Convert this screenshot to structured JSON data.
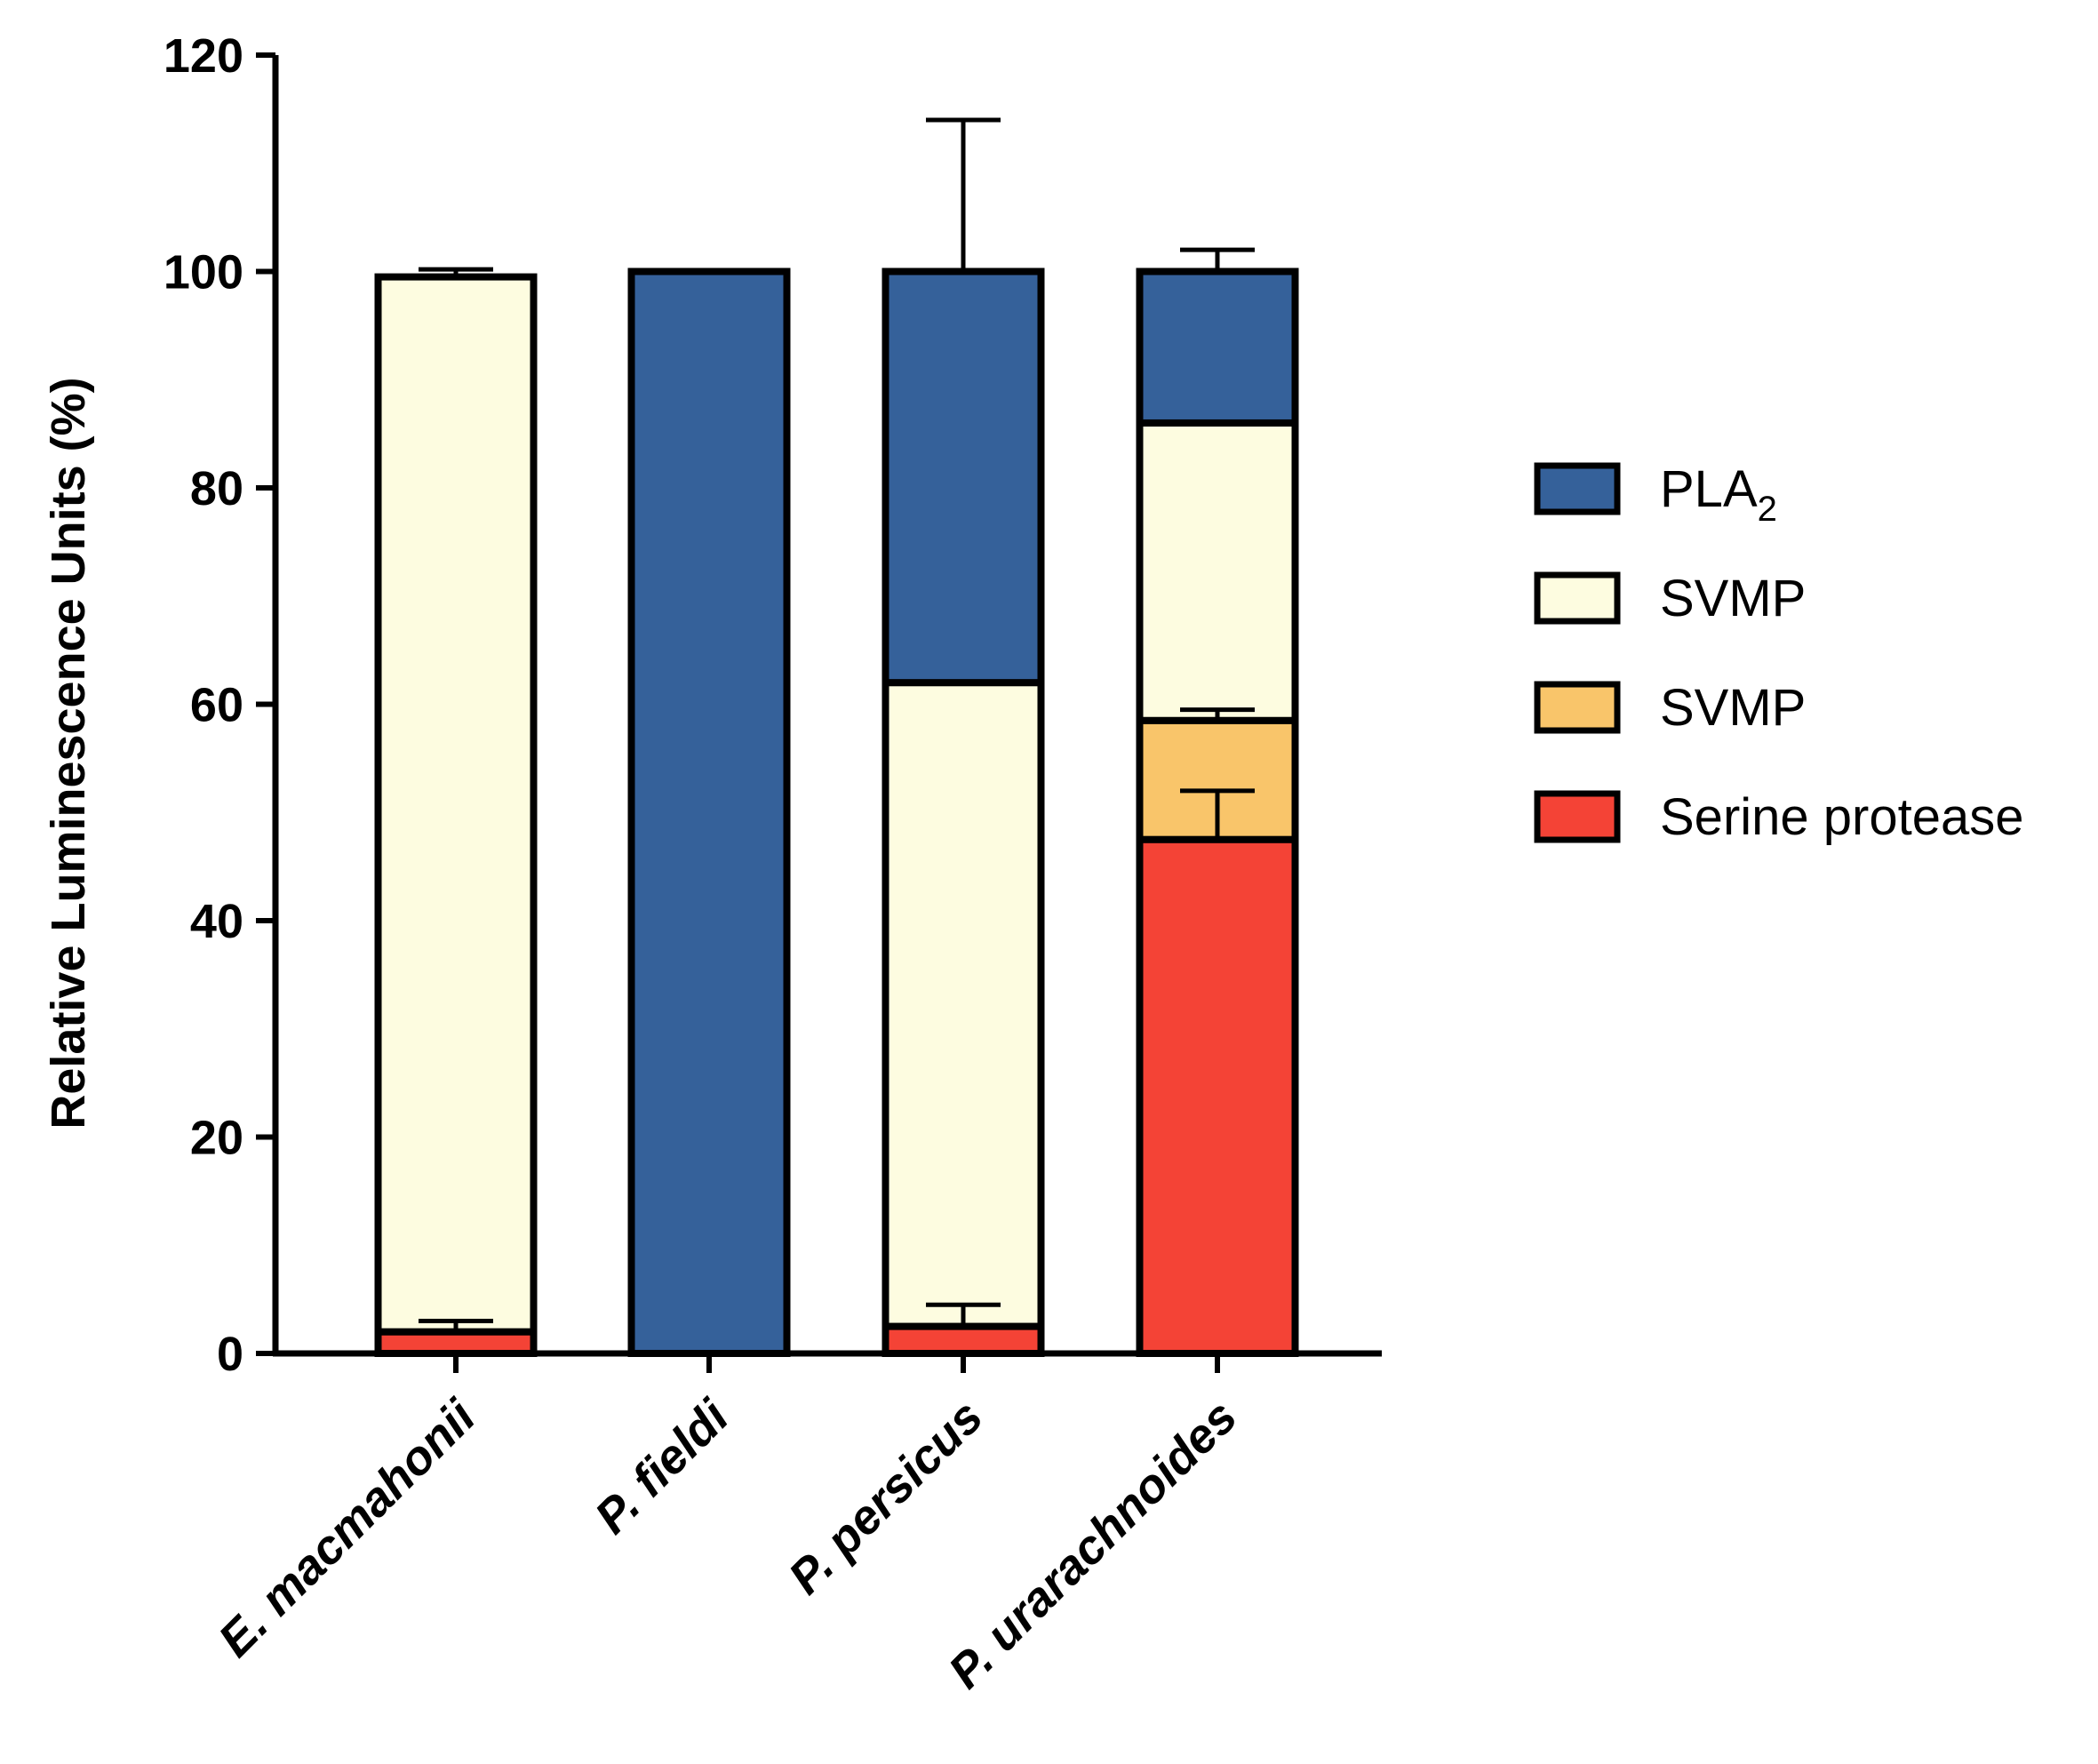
{
  "chart_data": {
    "type": "stacked-bar",
    "title": "",
    "xlabel": "",
    "ylabel": "Relative Luminescence Units (%)",
    "ylim": [
      0,
      120
    ],
    "yticks": [
      0,
      20,
      40,
      60,
      80,
      100,
      120
    ],
    "grid": false,
    "legend_position": "right",
    "categories": [
      "E. macmahonii",
      "P. fieldi",
      "P. persicus",
      "P. urarachnoides"
    ],
    "series": [
      {
        "name": "Serine protease",
        "color": "#f44336",
        "values": [
          2,
          0,
          2.5,
          47.5
        ],
        "errors": [
          1,
          0,
          2,
          4.5
        ]
      },
      {
        "name": "SVMP",
        "color": "#f9c56a",
        "values": [
          0,
          0,
          0,
          11
        ],
        "errors": [
          0,
          0,
          0,
          1
        ]
      },
      {
        "name": "SVMP",
        "color": "#fdfce0",
        "values": [
          97.5,
          0,
          59.5,
          27.5
        ],
        "errors": [
          0.7,
          0,
          0,
          0
        ]
      },
      {
        "name": "PLA2",
        "color": "#35619a",
        "values": [
          0,
          100,
          38,
          14
        ],
        "errors": [
          0,
          0,
          14,
          2
        ]
      }
    ],
    "legend": [
      {
        "main": "PLA",
        "sub": "2",
        "color": "#35619a"
      },
      {
        "main": "SVMP",
        "sub": "",
        "color": "#fdfce0"
      },
      {
        "main": "SVMP",
        "sub": "",
        "color": "#f9c56a"
      },
      {
        "main": "Serine protease",
        "sub": "",
        "color": "#f44336"
      }
    ]
  }
}
